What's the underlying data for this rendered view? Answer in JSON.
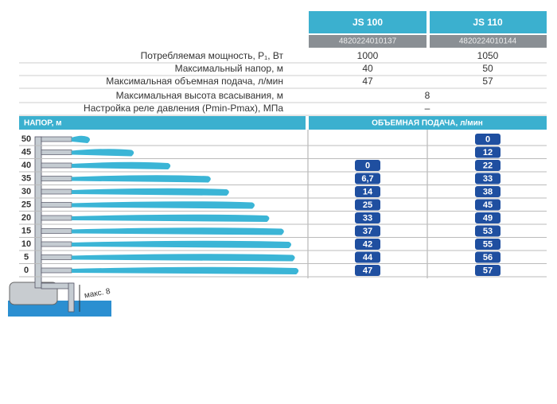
{
  "header": {
    "models": [
      "JS 100",
      "JS 110"
    ],
    "codes": [
      "4820224010137",
      "4820224010144"
    ]
  },
  "specs": [
    {
      "label": "Потребляемая мощность, P₁, Вт",
      "values": [
        "1000",
        "1050"
      ]
    },
    {
      "label": "Максимальный напор, м",
      "values": [
        "40",
        "50"
      ]
    },
    {
      "label": "Максимальная объемная подача, л/мин",
      "values": [
        "47",
        "57"
      ]
    },
    {
      "label": "Максимальная высота всасывания, м",
      "value": "8"
    },
    {
      "label": "Настройка реле давления (Pmin-Pmax), МПа",
      "value": "–"
    }
  ],
  "flow_table": {
    "head_title": "НАПОР, м",
    "flow_title": "ОБЪЕМНАЯ ПОДАЧА, л/мин",
    "rows": [
      {
        "head": "50",
        "js100": null,
        "js110": "0"
      },
      {
        "head": "45",
        "js100": null,
        "js110": "12"
      },
      {
        "head": "40",
        "js100": "0",
        "js110": "22"
      },
      {
        "head": "35",
        "js100": "6,7",
        "js110": "33"
      },
      {
        "head": "30",
        "js100": "14",
        "js110": "38"
      },
      {
        "head": "25",
        "js100": "25",
        "js110": "45"
      },
      {
        "head": "20",
        "js100": "33",
        "js110": "49"
      },
      {
        "head": "15",
        "js100": "37",
        "js110": "53"
      },
      {
        "head": "10",
        "js100": "42",
        "js110": "55"
      },
      {
        "head": "5",
        "js100": "44",
        "js110": "56"
      },
      {
        "head": "0",
        "js100": "47",
        "js110": "57"
      }
    ]
  },
  "diagram": {
    "suction_label": "макс. 8"
  }
}
